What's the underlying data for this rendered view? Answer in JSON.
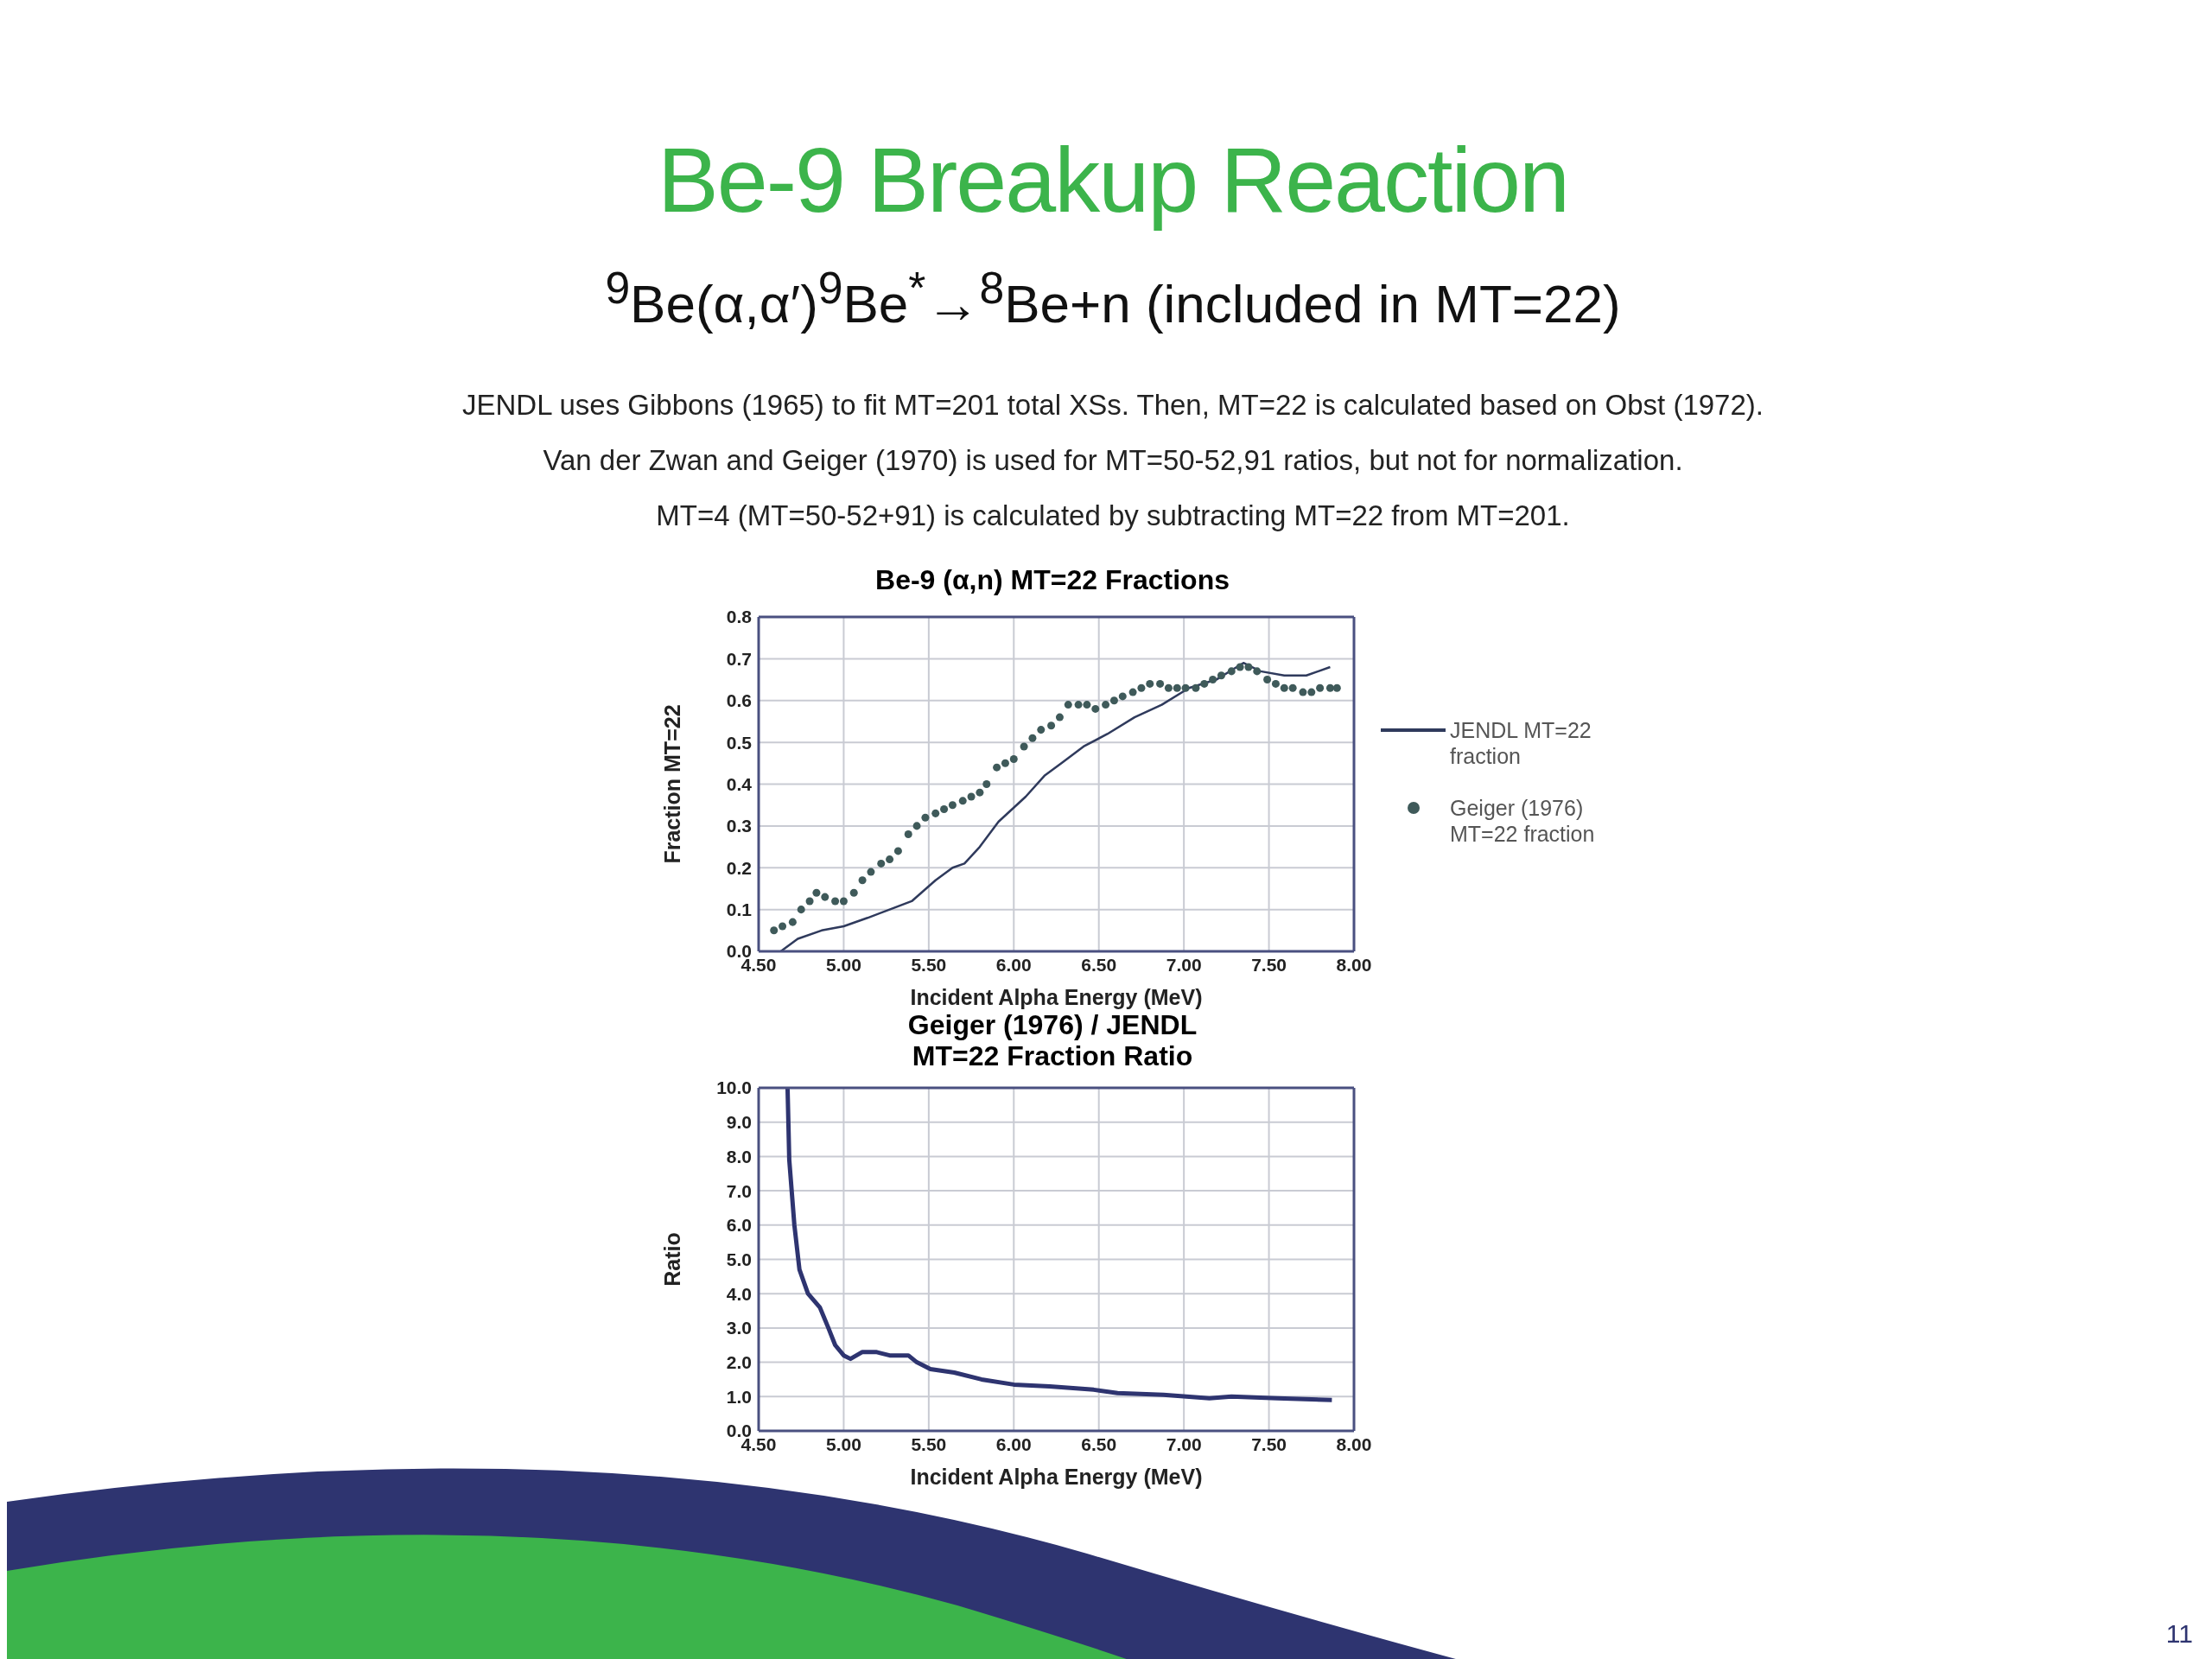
{
  "chart_data": [
    {
      "type": "scatter",
      "title": "Be-9 (α,n) MT=22 Fractions",
      "xlabel": "Incident Alpha Energy (MeV)",
      "ylabel": "Fraction MT=22",
      "annotations": [
        "Be-9 Breakup Reaction",
        "$^{9}$Be(α,α′)$^{9}$Be$^{*}$→$^{8}$Be+n (included in MT=22)",
        "JENDL uses Gibbons (1965) to fit MT=201 total XSs.  Then, MT=22 is calculated based on Obst (1972).",
        "Van der Zwan and Geiger (1970) is used for MT=50-52,91 ratios, but not for normalization.",
        "MT=4 (MT=50-52+91) is calculated by subtracting MT=22 from MT=201.",
        "11"
      ],
      "xlim": [
        4.5,
        8.0
      ],
      "xticks": [
        {
          "value": 4.5,
          "label": "4.50"
        },
        {
          "value": 5,
          "label": "5.00"
        },
        {
          "value": 5.5,
          "label": "5.50"
        },
        {
          "value": 6,
          "label": "6.00"
        },
        {
          "value": 6.5,
          "label": "6.50"
        },
        {
          "value": 7,
          "label": "7.00"
        },
        {
          "value": 7.5,
          "label": "7.50"
        },
        {
          "value": 8,
          "label": "8.00"
        }
      ],
      "ylim": [
        0,
        0.8
      ],
      "yticks": [
        {
          "value": 0,
          "label": "0.0"
        },
        0.1,
        0.2,
        0.3,
        0.4,
        0.5,
        0.6,
        0.7,
        0.8
      ],
      "grid": true,
      "legend": "right",
      "series": [
        {
          "name": "JENDL MT=22 fraction",
          "type": "line",
          "color": "#2f3a5c",
          "x": [
            4.63,
            4.73,
            4.87,
            5.0,
            5.14,
            5.27,
            5.4,
            5.54,
            5.64,
            5.71,
            5.8,
            5.91,
            6.07,
            6.18,
            6.28,
            6.41,
            6.55,
            6.71,
            6.87,
            7.03,
            7.19,
            7.35,
            7.45,
            7.59,
            7.72,
            7.86
          ],
          "values": [
            0.0,
            0.03,
            0.05,
            0.06,
            0.08,
            0.1,
            0.12,
            0.17,
            0.2,
            0.21,
            0.25,
            0.31,
            0.37,
            0.42,
            0.45,
            0.49,
            0.52,
            0.56,
            0.59,
            0.63,
            0.65,
            0.69,
            0.67,
            0.66,
            0.66,
            0.68
          ]
        },
        {
          "name": "Geiger (1976) MT=22 fraction",
          "marker": "circle",
          "color": "#3f5a5a",
          "x": [
            4.59,
            4.64,
            4.7,
            4.75,
            4.8,
            4.84,
            4.89,
            4.95,
            5.0,
            5.06,
            5.11,
            5.16,
            5.22,
            5.27,
            5.32,
            5.38,
            5.43,
            5.48,
            5.54,
            5.59,
            5.64,
            5.7,
            5.75,
            5.8,
            5.84,
            5.9,
            5.95,
            6.0,
            6.06,
            6.11,
            6.16,
            6.22,
            6.27,
            6.32,
            6.38,
            6.43,
            6.48,
            6.54,
            6.59,
            6.64,
            6.7,
            6.75,
            6.8,
            6.86,
            6.91,
            6.96,
            7.01,
            7.07,
            7.12,
            7.17,
            7.22,
            7.28,
            7.33,
            7.38,
            7.43,
            7.49,
            7.54,
            7.59,
            7.64,
            7.7,
            7.75,
            7.8,
            7.86,
            7.9
          ],
          "values": [
            0.05,
            0.06,
            0.07,
            0.1,
            0.12,
            0.14,
            0.13,
            0.12,
            0.12,
            0.14,
            0.17,
            0.19,
            0.21,
            0.22,
            0.24,
            0.28,
            0.3,
            0.32,
            0.33,
            0.34,
            0.35,
            0.36,
            0.37,
            0.38,
            0.4,
            0.44,
            0.45,
            0.46,
            0.49,
            0.51,
            0.53,
            0.54,
            0.56,
            0.59,
            0.59,
            0.59,
            0.58,
            0.59,
            0.6,
            0.61,
            0.62,
            0.63,
            0.64,
            0.64,
            0.63,
            0.63,
            0.63,
            0.63,
            0.64,
            0.65,
            0.66,
            0.67,
            0.68,
            0.68,
            0.67,
            0.65,
            0.64,
            0.63,
            0.63,
            0.62,
            0.62,
            0.63,
            0.63,
            0.63
          ]
        }
      ]
    },
    {
      "type": "line",
      "title": "Geiger (1976) / JENDL\nMT=22 Fraction Ratio",
      "xlabel": "Incident Alpha Energy (MeV)",
      "ylabel": "Ratio",
      "xlim": [
        4.5,
        8.0
      ],
      "xticks": [
        {
          "value": 4.5,
          "label": "4.50"
        },
        {
          "value": 5,
          "label": "5.00"
        },
        {
          "value": 5.5,
          "label": "5.50"
        },
        {
          "value": 6,
          "label": "6.00"
        },
        {
          "value": 6.5,
          "label": "6.50"
        },
        {
          "value": 7,
          "label": "7.00"
        },
        {
          "value": 7.5,
          "label": "7.50"
        },
        {
          "value": 8,
          "label": "8.00"
        }
      ],
      "ylim": [
        0,
        10
      ],
      "yticks": [
        {
          "value": 0,
          "label": "0.0"
        },
        {
          "value": 1,
          "label": "1.0"
        },
        {
          "value": 2,
          "label": "2.0"
        },
        {
          "value": 3,
          "label": "3.0"
        },
        {
          "value": 4,
          "label": "4.0"
        },
        {
          "value": 5,
          "label": "5.0"
        },
        {
          "value": 6,
          "label": "6.0"
        },
        {
          "value": 7,
          "label": "7.0"
        },
        {
          "value": 8,
          "label": "8.0"
        },
        {
          "value": 9,
          "label": "9.0"
        },
        {
          "value": 10,
          "label": "10.0"
        }
      ],
      "grid": true,
      "series": [
        {
          "color": "#2e3470",
          "x": [
            4.67,
            4.68,
            4.71,
            4.74,
            4.79,
            4.86,
            4.91,
            4.95,
            5.0,
            5.04,
            5.11,
            5.19,
            5.27,
            5.38,
            5.43,
            5.51,
            5.65,
            5.81,
            6.0,
            6.21,
            6.47,
            6.61,
            6.88,
            7.15,
            7.28,
            7.55,
            7.87
          ],
          "values": [
            10.0,
            7.9,
            6.0,
            4.7,
            4.0,
            3.6,
            3.0,
            2.5,
            2.2,
            2.1,
            2.3,
            2.3,
            2.2,
            2.2,
            2.0,
            1.8,
            1.7,
            1.5,
            1.35,
            1.3,
            1.2,
            1.1,
            1.05,
            0.95,
            1.0,
            0.95,
            0.9
          ]
        }
      ]
    }
  ]
}
